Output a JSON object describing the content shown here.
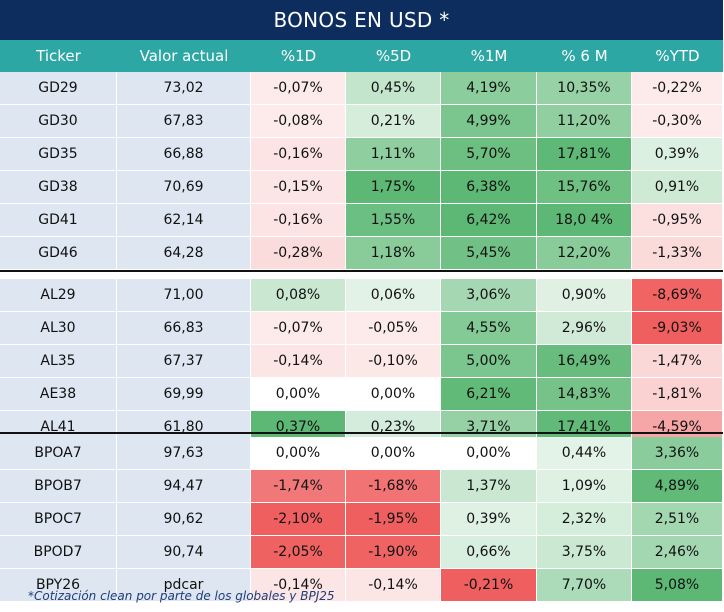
{
  "title": "BONOS EN USD *",
  "columns": [
    "Ticker",
    "Valor actual",
    "%1D",
    "%5D",
    "%1M",
    "% 6 M",
    "%YTD"
  ],
  "groups": [
    [
      {
        "t": "GD29",
        "v": "73,02",
        "c": [
          "-0,07%",
          "0,45%",
          "4,19%",
          "10,35%",
          "-0,22%"
        ]
      },
      {
        "t": "GD30",
        "v": "67,83",
        "c": [
          "-0,08%",
          "0,21%",
          "4,99%",
          "11,20%",
          "-0,30%"
        ]
      },
      {
        "t": "GD35",
        "v": "66,88",
        "c": [
          "-0,16%",
          "1,11%",
          "5,70%",
          "17,81%",
          "0,39%"
        ]
      },
      {
        "t": "GD38",
        "v": "70,69",
        "c": [
          "-0,15%",
          "1,75%",
          "6,38%",
          "15,76%",
          "0,91%"
        ]
      },
      {
        "t": "GD41",
        "v": "62,14",
        "c": [
          "-0,16%",
          "1,55%",
          "6,42%",
          "18,0 4%",
          "-0,95%"
        ]
      },
      {
        "t": "GD46",
        "v": "64,28",
        "c": [
          "-0,28%",
          "1,18%",
          "5,45%",
          "12,20%",
          "-1,33%"
        ]
      }
    ],
    [
      {
        "t": "AL29",
        "v": "71,00",
        "c": [
          "0,08%",
          "0,06%",
          "3,06%",
          "0,90%",
          "-8,69%"
        ]
      },
      {
        "t": "AL30",
        "v": "66,83",
        "c": [
          "-0,07%",
          "-0,05%",
          "4,55%",
          "2,96%",
          "-9,03%"
        ]
      },
      {
        "t": "AL35",
        "v": "67,37",
        "c": [
          "-0,14%",
          "-0,10%",
          "5,00%",
          "16,49%",
          "-1,47%"
        ]
      },
      {
        "t": "AE38",
        "v": "69,99",
        "c": [
          "0,00%",
          "0,00%",
          "6,21%",
          "14,83%",
          "-1,81%"
        ]
      },
      {
        "t": "AL41",
        "v": "61,80",
        "c": [
          "0,37%",
          "0,23%",
          "3,71%",
          "17,41%",
          "-4,59%"
        ]
      }
    ],
    [
      {
        "t": "BPOA7",
        "v": "97,63",
        "c": [
          "0,00%",
          "0,00%",
          "0,00%",
          "0,44%",
          "3,36%"
        ]
      },
      {
        "t": "BPOB7",
        "v": "94,47",
        "c": [
          "-1,74%",
          "-1,68%",
          "1,37%",
          "1,09%",
          "4,89%"
        ]
      },
      {
        "t": "BPOC7",
        "v": "90,62",
        "c": [
          "-2,10%",
          "-1,95%",
          "0,39%",
          "2,32%",
          "2,51%"
        ]
      },
      {
        "t": "BPOD7",
        "v": "90,74",
        "c": [
          "-2,05%",
          "-1,90%",
          "0,66%",
          "3,75%",
          "2,46%"
        ]
      },
      {
        "t": "BPY26",
        "v": "pdcar",
        "c": [
          "-0,14%",
          "-0,14%",
          "-0,21%",
          "7,70%",
          "5,08%"
        ]
      }
    ]
  ],
  "footnote": "*Cotización clean por parte de los globales y BPJ25",
  "colors": {
    "title_bg": "#0d2d5e",
    "header_bg": "#2ca7a4",
    "ticker_bg": "#dde6f1",
    "positive": "#5cb874",
    "negative": "#ef5f5f",
    "neutral": "#ffffff"
  }
}
